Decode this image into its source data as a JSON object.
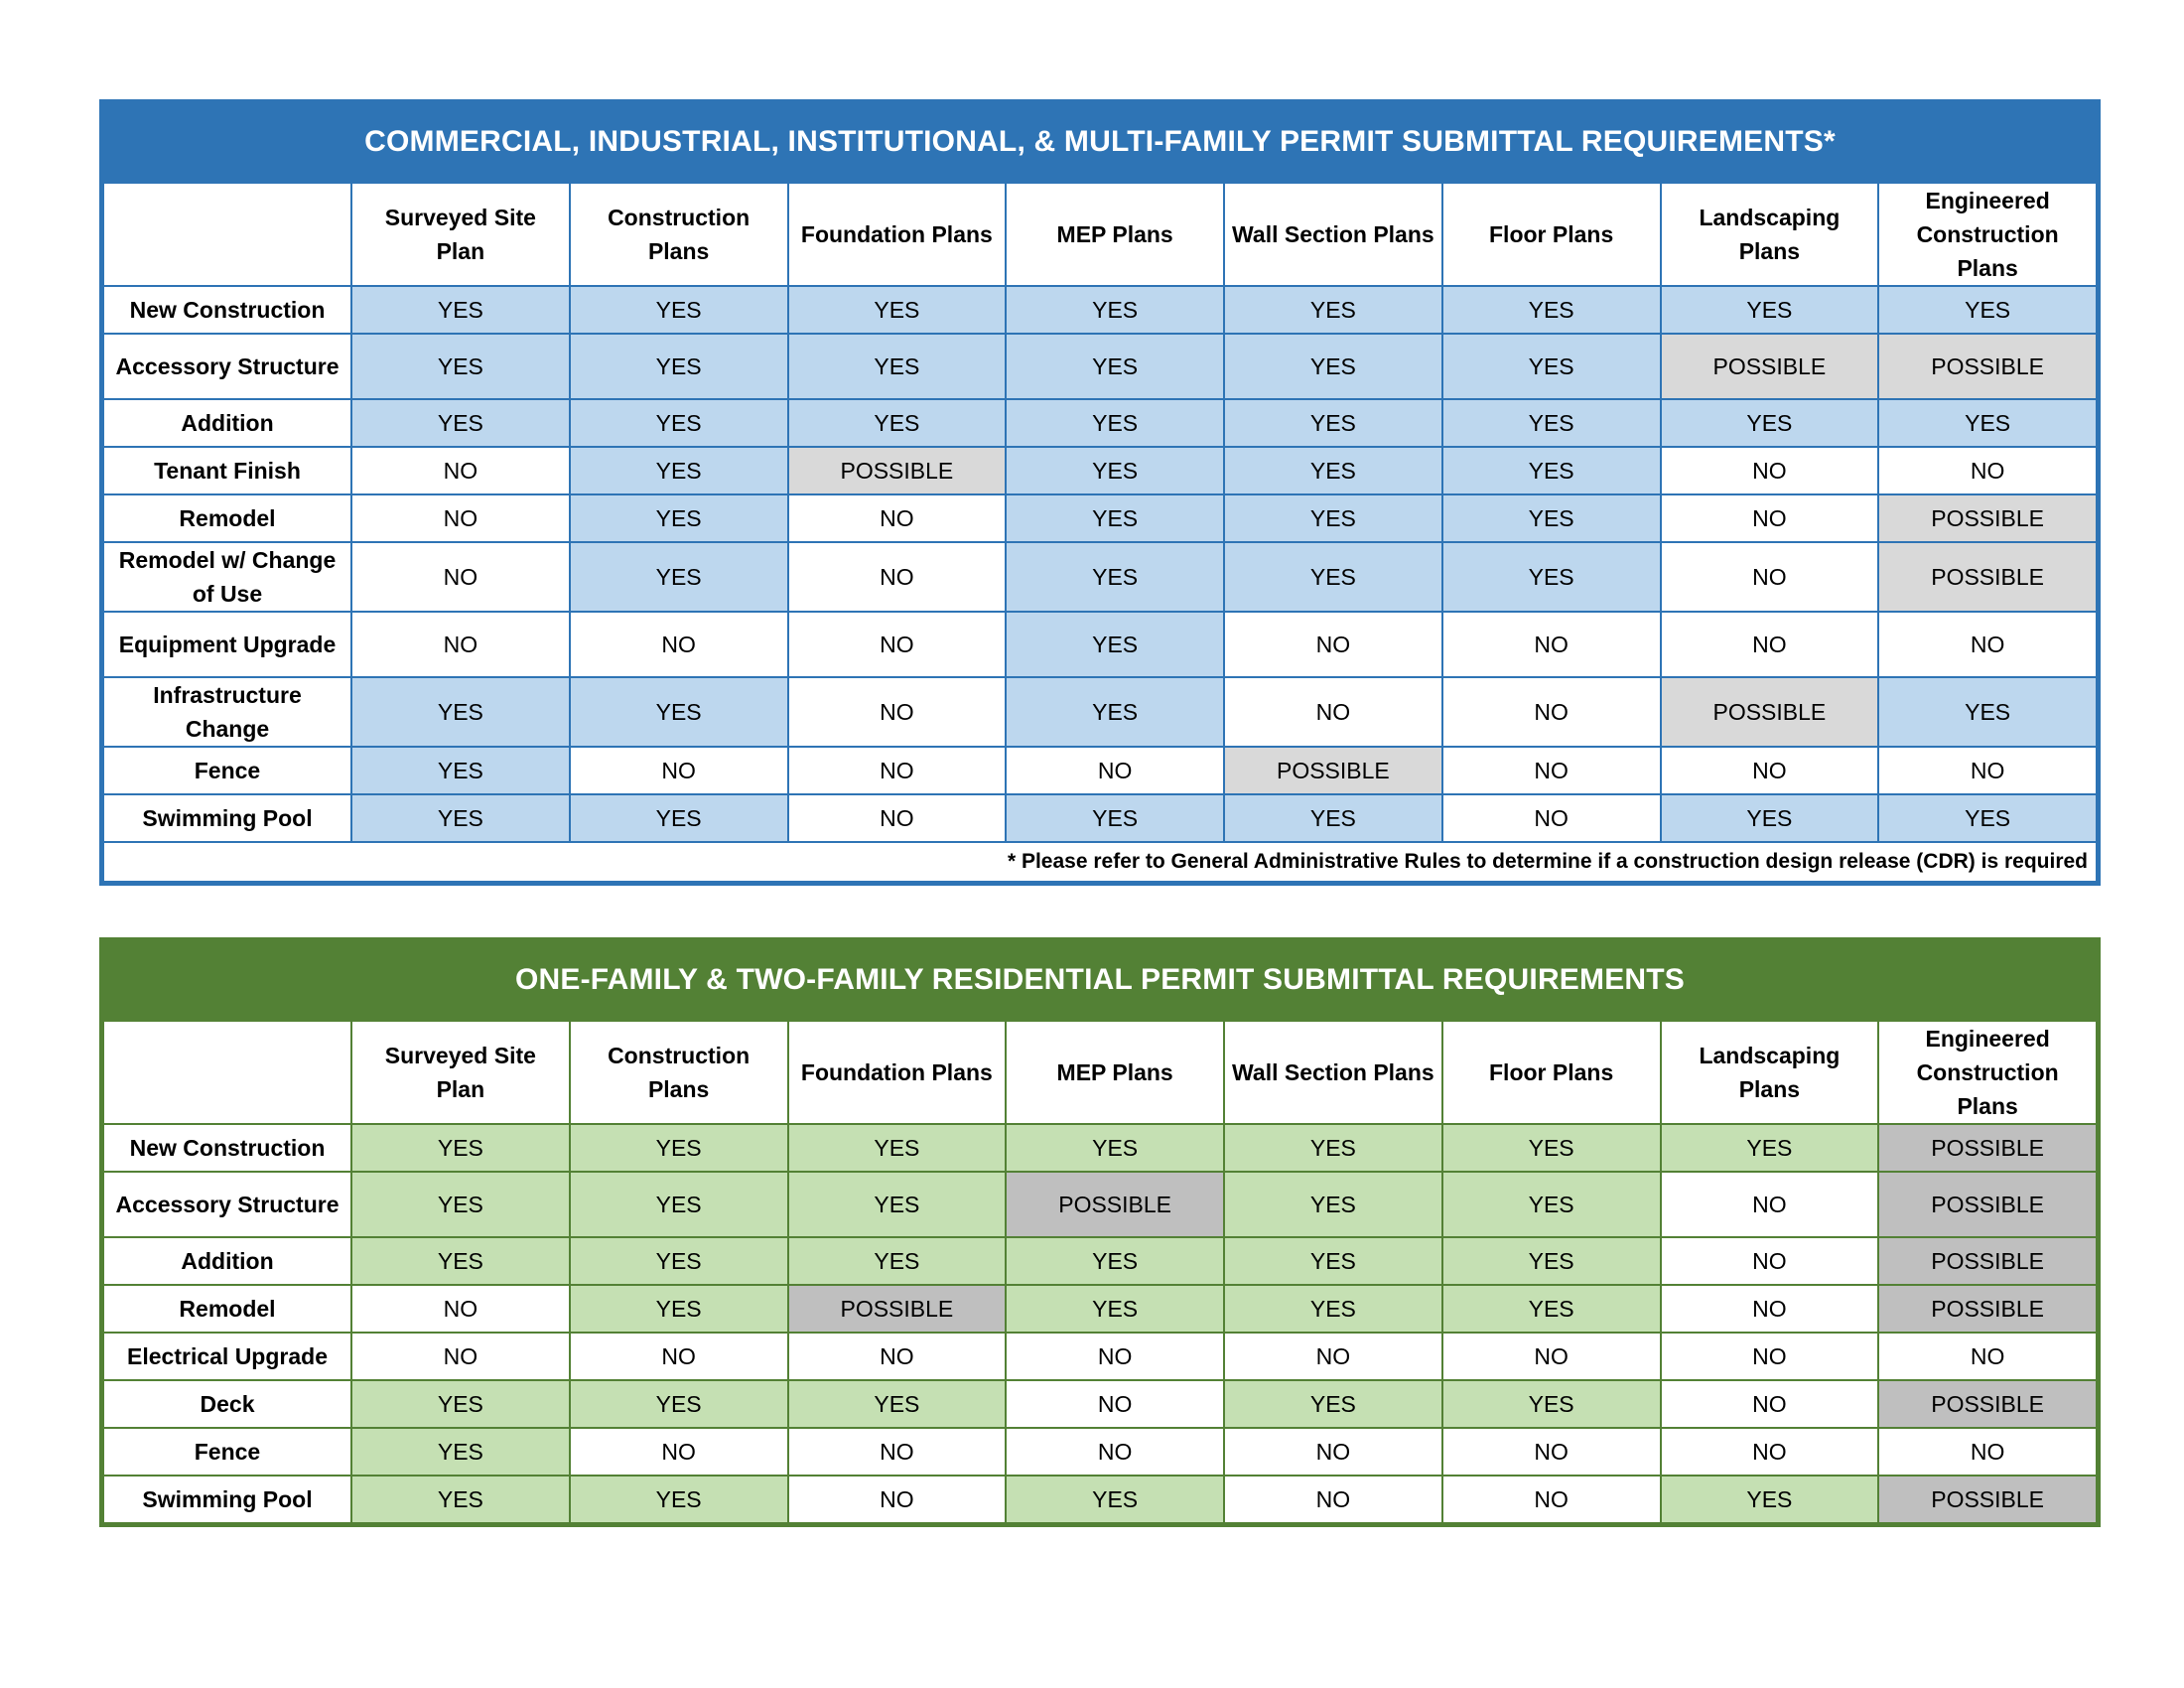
{
  "commercial": {
    "title": "COMMERCIAL, INDUSTRIAL, INSTITUTIONAL, & MULTI-FAMILY PERMIT SUBMITTAL REQUIREMENTS*",
    "columns": [
      "Surveyed Site Plan",
      "Construction Plans",
      "Foundation Plans",
      "MEP Plans",
      "Wall Section Plans",
      "Floor Plans",
      "Landscaping Plans",
      "Engineered Construction Plans"
    ],
    "rows": [
      {
        "label": "New Construction",
        "cells": [
          "YES",
          "YES",
          "YES",
          "YES",
          "YES",
          "YES",
          "YES",
          "YES"
        ]
      },
      {
        "label": "Accessory Structure",
        "cells": [
          "YES",
          "YES",
          "YES",
          "YES",
          "YES",
          "YES",
          "POSSIBLE",
          "POSSIBLE"
        ]
      },
      {
        "label": "Addition",
        "cells": [
          "YES",
          "YES",
          "YES",
          "YES",
          "YES",
          "YES",
          "YES",
          "YES"
        ]
      },
      {
        "label": "Tenant Finish",
        "cells": [
          "NO",
          "YES",
          "POSSIBLE",
          "YES",
          "YES",
          "YES",
          "NO",
          "NO"
        ]
      },
      {
        "label": "Remodel",
        "cells": [
          "NO",
          "YES",
          "NO",
          "YES",
          "YES",
          "YES",
          "NO",
          "POSSIBLE"
        ]
      },
      {
        "label": "Remodel w/ Change of Use",
        "cells": [
          "NO",
          "YES",
          "NO",
          "YES",
          "YES",
          "YES",
          "NO",
          "POSSIBLE"
        ]
      },
      {
        "label": "Equipment Upgrade",
        "cells": [
          "NO",
          "NO",
          "NO",
          "YES",
          "NO",
          "NO",
          "NO",
          "NO"
        ]
      },
      {
        "label": "Infrastructure Change",
        "cells": [
          "YES",
          "YES",
          "NO",
          "YES",
          "NO",
          "NO",
          "POSSIBLE",
          "YES"
        ]
      },
      {
        "label": "Fence",
        "cells": [
          "YES",
          "NO",
          "NO",
          "NO",
          "POSSIBLE",
          "NO",
          "NO",
          "NO"
        ]
      },
      {
        "label": "Swimming Pool",
        "cells": [
          "YES",
          "YES",
          "NO",
          "YES",
          "YES",
          "NO",
          "YES",
          "YES"
        ]
      }
    ],
    "footnote": "* Please refer to General Administrative Rules to determine if a construction design release (CDR) is required"
  },
  "residential": {
    "title": "ONE-FAMILY & TWO-FAMILY RESIDENTIAL PERMIT SUBMITTAL REQUIREMENTS",
    "columns": [
      "Surveyed Site Plan",
      "Construction Plans",
      "Foundation Plans",
      "MEP Plans",
      "Wall Section Plans",
      "Floor Plans",
      "Landscaping Plans",
      "Engineered Construction Plans"
    ],
    "rows": [
      {
        "label": "New Construction",
        "cells": [
          "YES",
          "YES",
          "YES",
          "YES",
          "YES",
          "YES",
          "YES",
          "POSSIBLE"
        ]
      },
      {
        "label": "Accessory Structure",
        "cells": [
          "YES",
          "YES",
          "YES",
          "POSSIBLE",
          "YES",
          "YES",
          "NO",
          "POSSIBLE"
        ]
      },
      {
        "label": "Addition",
        "cells": [
          "YES",
          "YES",
          "YES",
          "YES",
          "YES",
          "YES",
          "NO",
          "POSSIBLE"
        ]
      },
      {
        "label": "Remodel",
        "cells": [
          "NO",
          "YES",
          "POSSIBLE",
          "YES",
          "YES",
          "YES",
          "NO",
          "POSSIBLE"
        ]
      },
      {
        "label": "Electrical Upgrade",
        "cells": [
          "NO",
          "NO",
          "NO",
          "NO",
          "NO",
          "NO",
          "NO",
          "NO"
        ]
      },
      {
        "label": "Deck",
        "cells": [
          "YES",
          "YES",
          "YES",
          "NO",
          "YES",
          "YES",
          "NO",
          "POSSIBLE"
        ]
      },
      {
        "label": "Fence",
        "cells": [
          "YES",
          "NO",
          "NO",
          "NO",
          "NO",
          "NO",
          "NO",
          "NO"
        ]
      },
      {
        "label": "Swimming Pool",
        "cells": [
          "YES",
          "YES",
          "NO",
          "YES",
          "NO",
          "NO",
          "YES",
          "POSSIBLE"
        ]
      }
    ]
  },
  "colors": {
    "commercial_header": "#2e74b5",
    "commercial_yes": "#bdd7ee",
    "commercial_possible": "#d9d9d9",
    "residential_header": "#538135",
    "residential_yes": "#c5e0b3",
    "residential_possible": "#bfbfbf",
    "no": "#ffffff"
  }
}
